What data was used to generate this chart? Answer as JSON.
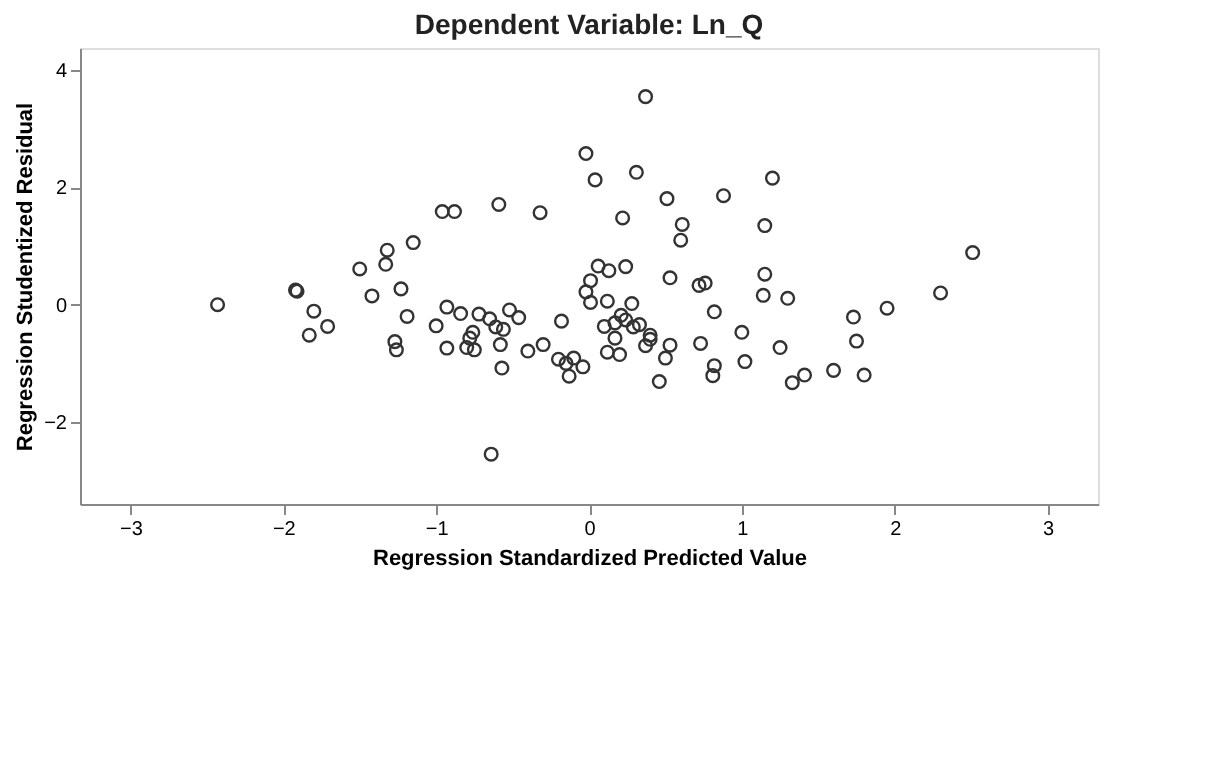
{
  "chart_data": {
    "type": "scatter",
    "title": "Dependent Variable: Ln_Q",
    "xlabel": "Regression Standardized Predicted Value",
    "ylabel": "Regression Studentized Residual",
    "xlim": [
      -3.33,
      3.33
    ],
    "ylim": [
      -3.4,
      4.38
    ],
    "xticks": [
      -3,
      -2,
      -1,
      0,
      1,
      2,
      3
    ],
    "yticks": [
      -2,
      0,
      2,
      4
    ],
    "grid": false,
    "marker": "circle",
    "series": [
      {
        "color": "#333333",
        "x": [
          -2.43,
          -1.92,
          -1.91,
          -1.8,
          -1.83,
          -1.71,
          -1.5,
          -1.32,
          -1.15,
          -1.33,
          -1.42,
          -1.23,
          -1.19,
          -1.27,
          -1.26,
          0.37,
          -0.02,
          0.04,
          0.31,
          0.51,
          0.88,
          -0.96,
          -0.88,
          -0.59,
          -0.32,
          0.22,
          0.61,
          0.6,
          1.15,
          1.2,
          1.15,
          1.14,
          1.3,
          1.0,
          1.02,
          1.25,
          1.33,
          1.41,
          1.6,
          1.8,
          1.75,
          1.73,
          1.95,
          2.3,
          2.51,
          0.06,
          0.13,
          0.24,
          0.01,
          -0.02,
          0.01,
          0.12,
          0.28,
          0.53,
          0.72,
          0.76,
          0.82,
          -0.93,
          -0.84,
          -0.72,
          -0.65,
          -0.52,
          -0.46,
          -0.61,
          -0.56,
          -1.0,
          -0.93,
          -0.76,
          -0.78,
          -0.8,
          -0.75,
          -0.58,
          -0.57,
          -0.4,
          -0.3,
          -0.18,
          -0.2,
          -0.15,
          -0.1,
          -0.13,
          -0.04,
          -0.64,
          0.1,
          0.17,
          0.21,
          0.24,
          0.29,
          0.33,
          0.17,
          0.12,
          0.2,
          0.37,
          0.4,
          0.4,
          0.53,
          0.5,
          0.46,
          0.73,
          0.82,
          0.81
        ],
        "values": [
          0.0,
          0.25,
          0.23,
          -0.11,
          -0.52,
          -0.37,
          0.61,
          0.93,
          1.06,
          0.69,
          0.15,
          0.27,
          -0.2,
          -0.63,
          -0.77,
          3.55,
          2.58,
          2.13,
          2.26,
          1.81,
          1.86,
          1.59,
          1.59,
          1.71,
          1.57,
          1.48,
          1.37,
          1.1,
          1.35,
          2.16,
          0.52,
          0.16,
          0.11,
          -0.47,
          -0.97,
          -0.73,
          -1.33,
          -1.2,
          -1.12,
          -1.2,
          -0.62,
          -0.21,
          -0.06,
          0.2,
          0.89,
          0.66,
          0.58,
          0.65,
          0.41,
          0.22,
          0.04,
          0.06,
          0.02,
          0.46,
          0.33,
          0.37,
          -0.12,
          -0.04,
          -0.15,
          -0.16,
          -0.24,
          -0.09,
          -0.22,
          -0.38,
          -0.42,
          -0.36,
          -0.74,
          -0.47,
          -0.57,
          -0.73,
          -0.77,
          -0.68,
          -1.08,
          -0.79,
          -0.68,
          -0.28,
          -0.93,
          -1.0,
          -0.91,
          -1.22,
          -1.06,
          -2.55,
          -0.37,
          -0.31,
          -0.18,
          -0.26,
          -0.38,
          -0.34,
          -0.57,
          -0.81,
          -0.85,
          -0.7,
          -0.52,
          -0.59,
          -0.69,
          -0.91,
          -1.31,
          -0.66,
          -1.04,
          -1.21
        ]
      }
    ]
  }
}
